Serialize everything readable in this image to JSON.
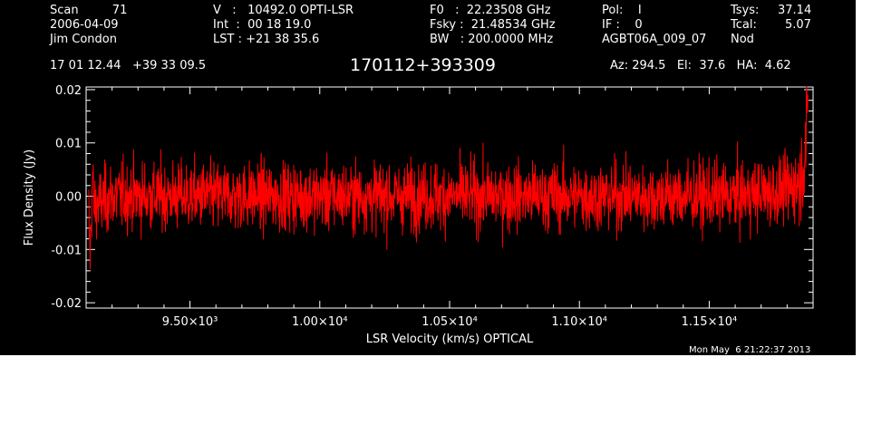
{
  "header": {
    "col1": [
      "Scan         71",
      "2006-04-09",
      "Jim Condon"
    ],
    "col2": [
      "V   :   10492.0 OPTI-LSR",
      "Int  :  00 18 19.0",
      "LST : +21 38 35.6"
    ],
    "col3": [
      "F0   :  22.23508 GHz",
      "Fsky :  21.48534 GHz",
      "BW   : 200.0000 MHz"
    ],
    "col4": [
      "Pol:    I",
      "IF :    0",
      "AGBT06A_009_07"
    ],
    "col5": [
      "Tsys:",
      "Tcal:",
      "Nod"
    ],
    "col6": [
      "37.14",
      "5.07",
      ""
    ],
    "coords": "17 01 12.44   +39 33 09.5",
    "source": "170112+393309",
    "azelha": "Az: 294.5   El:  37.6   HA:  4.62",
    "timestamp": "Mon May  6 21:22:37 2013"
  },
  "chart_data": {
    "type": "line",
    "title": "170112+393309",
    "xlabel": "LSR Velocity (km/s) OPTICAL",
    "ylabel": "Flux Density (Jy)",
    "xlim": [
      9100,
      11900
    ],
    "ylim": [
      -0.021,
      0.0205
    ],
    "x_ticks": [
      9500,
      10000,
      10500,
      11000,
      11500
    ],
    "x_tick_labels": [
      "9.50×10³",
      "1.00×10⁴",
      "1.05×10⁴",
      "1.10×10⁴",
      "1.15×10⁴"
    ],
    "y_ticks": [
      -0.02,
      -0.01,
      0.0,
      0.01,
      0.02
    ],
    "y_tick_labels": [
      "-0.02",
      "-0.01",
      "0.00",
      "0.01",
      "0.02"
    ],
    "grid": false,
    "series": [
      {
        "color": "#ff0000",
        "description_points": [
          [
            9110,
            -0.003
          ],
          [
            9115,
            -0.012
          ],
          [
            9125,
            0.004
          ],
          [
            9130,
            -0.002
          ],
          [
            9200,
            0.0
          ],
          [
            9400,
            0.0
          ],
          [
            9600,
            0.0
          ],
          [
            9800,
            0.0
          ],
          [
            10000,
            0.0
          ],
          [
            10200,
            0.0
          ],
          [
            10400,
            0.0
          ],
          [
            10600,
            0.0
          ],
          [
            10800,
            0.0
          ],
          [
            11000,
            0.0
          ],
          [
            11200,
            0.0
          ],
          [
            11400,
            0.0
          ],
          [
            11600,
            0.0
          ],
          [
            11800,
            0.001
          ],
          [
            11850,
            0.003
          ],
          [
            11870,
            0.008
          ],
          [
            11880,
            0.017
          ]
        ],
        "noise_rms": 0.0045
      }
    ]
  }
}
